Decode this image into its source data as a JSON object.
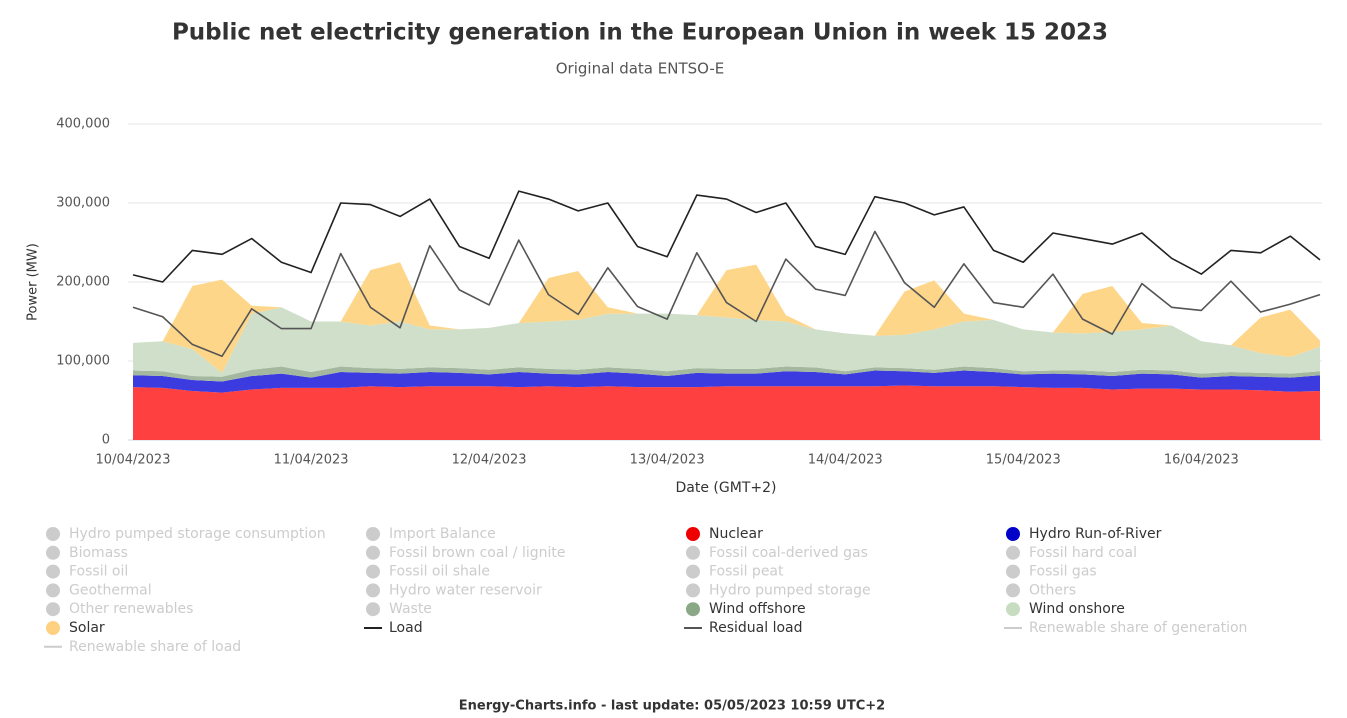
{
  "chart_data": {
    "type": "stacked_area",
    "title": "Public net electricity generation in the European Union in week 15 2023",
    "subtitle": "Original data ENTSO-E",
    "y_label": "Power (MW)",
    "x_label": "Date (GMT+2)",
    "categories": [
      "10/04/2023",
      null,
      null,
      null,
      null,
      null,
      "11/04/2023",
      null,
      null,
      null,
      null,
      null,
      "12/04/2023",
      null,
      null,
      null,
      null,
      null,
      "13/04/2023",
      null,
      null,
      null,
      null,
      null,
      "14/04/2023",
      null,
      null,
      null,
      null,
      null,
      "15/04/2023",
      null,
      null,
      null,
      null,
      null,
      "16/04/2023",
      null,
      null,
      null,
      null
    ],
    "ylim": [
      0,
      400000
    ],
    "yticks": [
      0,
      {
        "value": 100000,
        "label": "100,000"
      },
      {
        "value": 200000,
        "label": "200,000"
      },
      {
        "value": 300000,
        "label": "300,000"
      },
      {
        "value": 400000,
        "label": "400,000"
      }
    ],
    "grid": true,
    "series": [
      {
        "name": "Hydro pumped storage consumption",
        "marker": "circle",
        "visible": false
      },
      {
        "name": "Import Balance",
        "marker": "circle",
        "visible": false
      },
      {
        "name": "Nuclear",
        "marker": "circle",
        "visible": true,
        "kind": "area",
        "color": "#ff4040",
        "legend_color": "#ee0000",
        "values": [
          67000,
          66000,
          62000,
          60000,
          64000,
          66000,
          66000,
          66000,
          68000,
          67000,
          68000,
          68000,
          68000,
          67000,
          68000,
          67000,
          68000,
          67000,
          67000,
          67000,
          68000,
          68000,
          68000,
          68000,
          68000,
          68000,
          69000,
          68000,
          68000,
          68000,
          67000,
          66000,
          66000,
          64000,
          65000,
          65000,
          64000,
          64000,
          63000,
          61000,
          62000
        ]
      },
      {
        "name": "Hydro Run-of-River",
        "marker": "circle",
        "visible": true,
        "kind": "area",
        "color": "#3b3be0",
        "legend_color": "#0000c8",
        "values": [
          15000,
          15000,
          14000,
          14000,
          17000,
          18000,
          13000,
          20000,
          17000,
          17000,
          18000,
          17000,
          15000,
          19000,
          16000,
          16000,
          18000,
          17000,
          14000,
          18000,
          16000,
          16000,
          19000,
          18000,
          15000,
          20000,
          18000,
          17000,
          20000,
          18000,
          16000,
          18000,
          17000,
          17000,
          19000,
          18000,
          15000,
          17000,
          17000,
          18000,
          20000
        ]
      },
      {
        "name": "Biomass",
        "marker": "circle",
        "visible": false
      },
      {
        "name": "Fossil brown coal / lignite",
        "marker": "circle",
        "visible": false
      },
      {
        "name": "Fossil coal-derived gas",
        "marker": "circle",
        "visible": false
      },
      {
        "name": "Fossil hard coal",
        "marker": "circle",
        "visible": false
      },
      {
        "name": "Fossil oil",
        "marker": "circle",
        "visible": false
      },
      {
        "name": "Fossil oil shale",
        "marker": "circle",
        "visible": false
      },
      {
        "name": "Fossil peat",
        "marker": "circle",
        "visible": false
      },
      {
        "name": "Fossil gas",
        "marker": "circle",
        "visible": false
      },
      {
        "name": "Geothermal",
        "marker": "circle",
        "visible": false
      },
      {
        "name": "Hydro water reservoir",
        "marker": "circle",
        "visible": false
      },
      {
        "name": "Hydro pumped storage",
        "marker": "circle",
        "visible": false
      },
      {
        "name": "Others",
        "marker": "circle",
        "visible": false
      },
      {
        "name": "Other renewables",
        "marker": "circle",
        "visible": false
      },
      {
        "name": "Waste",
        "marker": "circle",
        "visible": false
      },
      {
        "name": "Wind offshore",
        "marker": "circle",
        "visible": true,
        "kind": "area",
        "color": "#a4b89f",
        "legend_color": "#8aa886",
        "values": [
          6000,
          6000,
          5000,
          6000,
          8000,
          9000,
          7000,
          7000,
          6000,
          6000,
          6000,
          6000,
          6000,
          6000,
          6000,
          6000,
          6000,
          6000,
          6000,
          6000,
          6000,
          6000,
          6000,
          6000,
          4000,
          4000,
          4000,
          4000,
          5000,
          5000,
          4000,
          4000,
          5000,
          5000,
          5000,
          5000,
          5000,
          5000,
          5000,
          5000,
          5000
        ]
      },
      {
        "name": "Wind onshore",
        "marker": "circle",
        "visible": true,
        "kind": "area",
        "color": "#cfdfc9",
        "legend_color": "#c7dcc0",
        "values": [
          35000,
          38000,
          34000,
          5000,
          71000,
          75000,
          64000,
          57000,
          54000,
          60000,
          48000,
          49000,
          53000,
          56000,
          60000,
          63000,
          68000,
          70000,
          73000,
          67000,
          65000,
          62000,
          57000,
          48000,
          48000,
          40000,
          42000,
          51000,
          57000,
          61000,
          53000,
          48000,
          47000,
          51000,
          51000,
          57000,
          41000,
          34000,
          25000,
          21000,
          31000
        ]
      },
      {
        "name": "Solar",
        "marker": "circle",
        "visible": true,
        "kind": "area",
        "color": "#fed68a",
        "legend_color": "#fdd17f",
        "values": [
          0,
          0,
          80000,
          118000,
          10000,
          0,
          0,
          0,
          70000,
          75000,
          5000,
          0,
          0,
          0,
          55000,
          62000,
          8000,
          0,
          0,
          0,
          60000,
          70000,
          8000,
          0,
          0,
          0,
          55000,
          62000,
          10000,
          0,
          0,
          0,
          50000,
          58000,
          8000,
          0,
          0,
          0,
          45000,
          60000,
          8000
        ]
      },
      {
        "name": "Load",
        "marker": "line",
        "visible": true,
        "kind": "line",
        "color": "#222222",
        "values": [
          209000,
          200000,
          240000,
          235000,
          255000,
          225000,
          212000,
          300000,
          298000,
          283000,
          305000,
          245000,
          230000,
          315000,
          305000,
          290000,
          300000,
          245000,
          232000,
          310000,
          305000,
          288000,
          300000,
          245000,
          235000,
          308000,
          300000,
          285000,
          295000,
          240000,
          225000,
          262000,
          255000,
          248000,
          262000,
          230000,
          210000,
          240000,
          237000,
          258000,
          228000
        ]
      },
      {
        "name": "Residual load",
        "marker": "line",
        "visible": true,
        "kind": "line",
        "color": "#555555",
        "values": [
          168000,
          156000,
          121000,
          106000,
          166000,
          141000,
          141000,
          236000,
          168000,
          142000,
          246000,
          190000,
          171000,
          253000,
          184000,
          159000,
          218000,
          169000,
          153000,
          237000,
          174000,
          150000,
          229000,
          191000,
          183000,
          264000,
          199000,
          168000,
          223000,
          174000,
          168000,
          210000,
          153000,
          134000,
          198000,
          168000,
          164000,
          201000,
          162000,
          172000,
          184000
        ]
      },
      {
        "name": "Renewable share of generation",
        "marker": "line",
        "visible": false
      },
      {
        "name": "Renewable share of load",
        "marker": "line",
        "visible": false
      }
    ]
  },
  "footer": "Energy-Charts.info - last update: 05/05/2023 10:59 UTC+2"
}
